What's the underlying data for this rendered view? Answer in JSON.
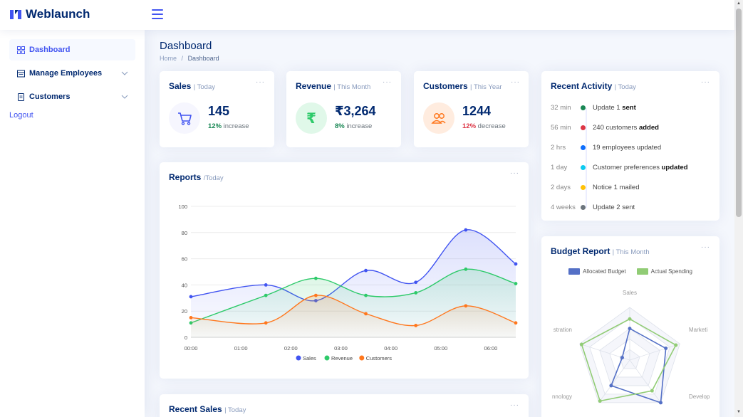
{
  "app": {
    "name": "Weblaunch"
  },
  "sidebar": {
    "items": [
      {
        "label": "Dashboard"
      },
      {
        "label": "Manage Employees"
      },
      {
        "label": "Customers"
      }
    ],
    "logout": "Logout"
  },
  "page": {
    "title": "Dashboard",
    "breadcrumb": {
      "home": "Home",
      "separator": "/",
      "current": "Dashboard"
    }
  },
  "stats": [
    {
      "title": "Sales",
      "period": "| Today",
      "value": "145",
      "pct": "12%",
      "trend": "increase",
      "trend_color": "#198754",
      "icon_bg": "#f6f6fe",
      "icon_color": "#4154f1"
    },
    {
      "title": "Revenue",
      "period": "| This Month",
      "value": "₹3,264",
      "pct": "8%",
      "trend": "increase",
      "trend_color": "#198754",
      "icon_bg": "#e0f8e9",
      "icon_color": "#2eca6a",
      "icon_glyph": "₹"
    },
    {
      "title": "Customers",
      "period": "| This Year",
      "value": "1244",
      "pct": "12%",
      "trend": "decrease",
      "trend_color": "#dc3545",
      "icon_bg": "#ffecdf",
      "icon_color": "#ff771d"
    }
  ],
  "menu_dots": "···",
  "reports": {
    "title": "Reports",
    "period": "/Today"
  },
  "recent_sales": {
    "title": "Recent Sales",
    "period": "| Today"
  },
  "activity": {
    "title": "Recent Activity",
    "period": "| Today",
    "items": [
      {
        "time": "32 min",
        "color": "#198754",
        "text": "Update 1 ",
        "bold": "sent",
        "suffix": ""
      },
      {
        "time": "56 min",
        "color": "#dc3545",
        "text": "240 customers ",
        "bold": "added",
        "suffix": ""
      },
      {
        "time": "2 hrs",
        "color": "#0d6efd",
        "text": "19 employees updated",
        "bold": "",
        "suffix": ""
      },
      {
        "time": "1 day",
        "color": "#0dcaf0",
        "text": "Customer preferences ",
        "bold": "updated",
        "suffix": ""
      },
      {
        "time": "2 days",
        "color": "#ffc107",
        "text": "Notice 1 mailed",
        "bold": "",
        "suffix": ""
      },
      {
        "time": "4 weeks",
        "color": "#6c757d",
        "text": "Update 2 sent",
        "bold": "",
        "suffix": ""
      }
    ]
  },
  "budget": {
    "title": "Budget Report",
    "period": "| This Month",
    "legend": [
      {
        "name": "Allocated Budget",
        "color": "#5470c6"
      },
      {
        "name": "Actual Spending",
        "color": "#91cc75"
      }
    ],
    "axes": [
      "Sales",
      "Marketi",
      "Develop",
      "nnology",
      "stration"
    ]
  },
  "chart_data": [
    {
      "type": "area",
      "title": "Reports",
      "categories": [
        "00:00",
        "01:00",
        "02:00",
        "03:00",
        "04:00",
        "05:00",
        "06:00"
      ],
      "x": [
        0,
        1.5,
        2.5,
        3.5,
        4.5,
        5.5,
        6.5
      ],
      "ylim": [
        0,
        100
      ],
      "yticks": [
        0,
        20,
        40,
        60,
        80,
        100
      ],
      "series": [
        {
          "name": "Sales",
          "color": "#4154f1",
          "x": [
            0,
            1.5,
            2.5,
            3.5,
            4.5,
            5.5,
            6.5
          ],
          "values": [
            31,
            40,
            28,
            51,
            42,
            82,
            56
          ]
        },
        {
          "name": "Revenue",
          "color": "#2eca6a",
          "x": [
            0,
            1.5,
            2.5,
            3.5,
            4.5,
            5.5,
            6.5
          ],
          "values": [
            11,
            32,
            45,
            32,
            34,
            52,
            41
          ]
        },
        {
          "name": "Customers",
          "color": "#ff771d",
          "x": [
            0,
            1.5,
            2.5,
            3.5,
            4.5,
            5.5,
            6.5
          ],
          "values": [
            15,
            11,
            32,
            18,
            9,
            24,
            11
          ]
        }
      ]
    },
    {
      "type": "radar",
      "title": "Budget Report",
      "axes": [
        "Sales",
        "Marketing",
        "Development",
        "Technology",
        "Administration"
      ],
      "series": [
        {
          "name": "Allocated Budget",
          "color": "#5470c6",
          "values": [
            0.6,
            0.72,
            1.0,
            0.6,
            0.15
          ]
        },
        {
          "name": "Actual Spending",
          "color": "#91cc75",
          "values": [
            0.78,
            0.92,
            0.72,
            0.96,
            0.96
          ]
        }
      ]
    }
  ]
}
